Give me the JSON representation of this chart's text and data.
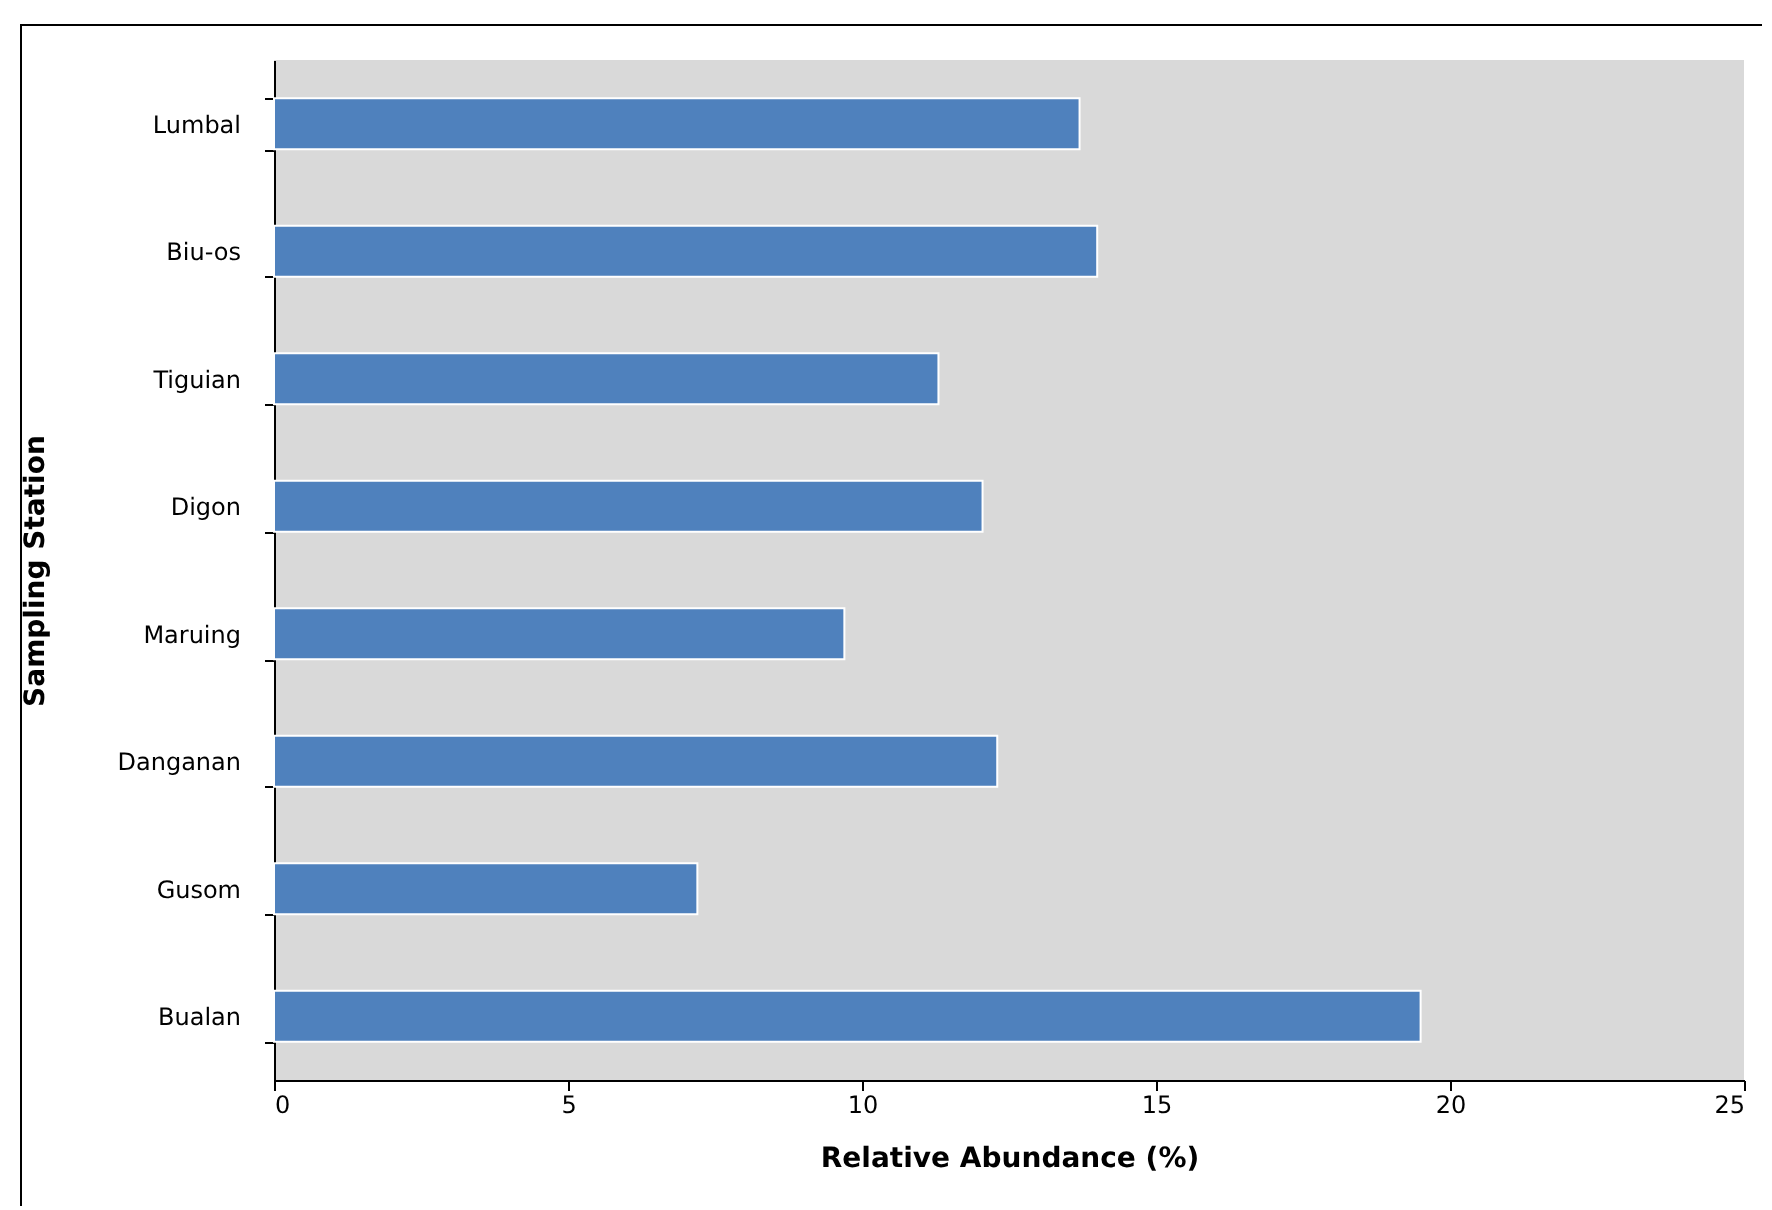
{
  "chart_data": {
    "type": "bar",
    "orientation": "horizontal",
    "xlabel": "Relative Abundance (%)",
    "ylabel": "Sampling Station",
    "categories": [
      "Lumbal",
      "Biu-os",
      "Tiguian",
      "Digon",
      "Maruing",
      "Danganan",
      "Gusom",
      "Bualan"
    ],
    "values": [
      13.7,
      14.0,
      11.3,
      12.05,
      9.7,
      12.3,
      7.2,
      19.5
    ],
    "color": "#4f81bd",
    "xlim": [
      0,
      25
    ],
    "xticks": [
      0,
      5,
      10,
      15,
      20,
      25
    ],
    "grid": false
  }
}
